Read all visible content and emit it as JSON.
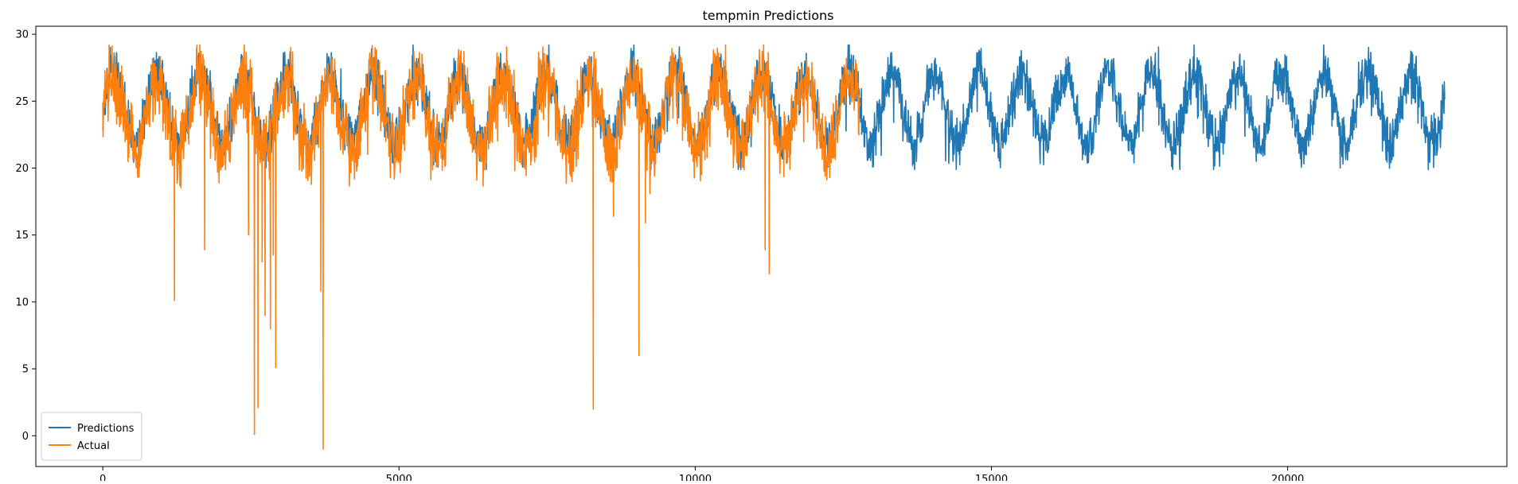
{
  "chart_data": {
    "type": "line",
    "title": "tempmin Predictions",
    "xlabel": "",
    "ylabel": "",
    "xlim": [
      -1130,
      23700
    ],
    "ylim": [
      -2.3,
      30.6
    ],
    "xticks": [
      0,
      5000,
      10000,
      15000,
      20000
    ],
    "yticks": [
      0,
      5,
      10,
      15,
      20,
      25,
      30
    ],
    "grid": false,
    "legend_position": "lower-left",
    "series": [
      {
        "name": "Predictions",
        "color": "#1f77b4",
        "x_range": [
          0,
          22650
        ],
        "baseline_mean": 24.5,
        "seasonal_amplitude": 2.6,
        "noise_amplitude": 1.1,
        "seasonal_period": 730,
        "min": 19.9,
        "max": 29.2
      },
      {
        "name": "Actual",
        "color": "#ff7f0e",
        "x_range": [
          0,
          12780
        ],
        "baseline_mean": 24.0,
        "seasonal_amplitude": 2.6,
        "noise_amplitude": 1.6,
        "seasonal_period": 730,
        "min": -1.0,
        "max": 29.2,
        "outliers": [
          {
            "x": 1210,
            "y": 10.1
          },
          {
            "x": 1720,
            "y": 13.9
          },
          {
            "x": 2460,
            "y": 15.0
          },
          {
            "x": 2560,
            "y": 0.1
          },
          {
            "x": 2620,
            "y": 2.1
          },
          {
            "x": 2690,
            "y": 13.0
          },
          {
            "x": 2740,
            "y": 9.0
          },
          {
            "x": 2830,
            "y": 8.0
          },
          {
            "x": 2880,
            "y": 13.5
          },
          {
            "x": 2920,
            "y": 5.1
          },
          {
            "x": 3680,
            "y": 10.8
          },
          {
            "x": 3720,
            "y": -1.0
          },
          {
            "x": 8280,
            "y": 2.0
          },
          {
            "x": 8620,
            "y": 16.4
          },
          {
            "x": 9050,
            "y": 6.0
          },
          {
            "x": 9160,
            "y": 15.9
          },
          {
            "x": 11180,
            "y": 13.9
          },
          {
            "x": 11250,
            "y": 12.1
          }
        ]
      }
    ]
  }
}
